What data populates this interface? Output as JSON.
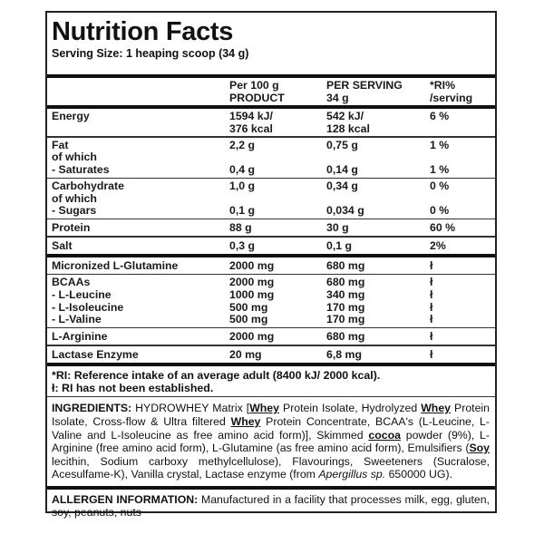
{
  "title": "Nutrition Facts",
  "serving_size": "Serving Size: 1 heaping scoop (34 g)",
  "table": {
    "groups": [
      {
        "type": "header",
        "lines": [
          [
            "",
            "Per 100 g",
            "PER SERVING",
            "*RI%"
          ],
          [
            "",
            "PRODUCT",
            "34 g",
            "/serving"
          ]
        ],
        "after": "thick"
      },
      {
        "lines": [
          [
            "Energy",
            "1594 kJ/",
            "542 kJ/",
            "6 %"
          ],
          [
            "",
            "376 kcal",
            "128 kcal",
            ""
          ]
        ],
        "after": "thin"
      },
      {
        "lines": [
          [
            "Fat",
            "2,2 g",
            "0,75 g",
            "1 %"
          ],
          [
            "of which",
            "",
            "",
            ""
          ],
          [
            "- Saturates",
            "0,4 g",
            "0,14 g",
            "1 %"
          ]
        ],
        "after": "thin"
      },
      {
        "lines": [
          [
            "Carbohydrate",
            "1,0 g",
            "0,34 g",
            "0 %"
          ],
          [
            "of which",
            "",
            "",
            ""
          ],
          [
            "- Sugars",
            "0,1 g",
            "0,034 g",
            "0 %"
          ]
        ],
        "after": "thin"
      },
      {
        "lines": [
          [
            "Protein",
            "88 g",
            "30 g",
            "60 %"
          ]
        ],
        "after": "thin"
      },
      {
        "lines": [
          [
            "Salt",
            "0,3 g",
            "0,1 g",
            "2%"
          ]
        ],
        "after": "thick"
      },
      {
        "lines": [
          [
            "Micronized L-Glutamine",
            "2000 mg",
            "680 mg",
            "ł"
          ]
        ],
        "after": "thin"
      },
      {
        "lines": [
          [
            "BCAAs",
            "2000 mg",
            "680 mg",
            "ł"
          ],
          [
            "- L-Leucine",
            "1000 mg",
            "340 mg",
            "ł"
          ],
          [
            "- L-Isoleucine",
            "500 mg",
            "170 mg",
            "ł"
          ],
          [
            "- L-Valine",
            "500 mg",
            "170 mg",
            "ł"
          ]
        ],
        "after": "thin"
      },
      {
        "lines": [
          [
            "L-Arginine",
            "2000 mg",
            "680 mg",
            "ł"
          ]
        ],
        "after": "thin"
      },
      {
        "lines": [
          [
            "Lactase Enzyme",
            "20 mg",
            "6,8 mg",
            "ł"
          ]
        ],
        "after": "thick"
      }
    ]
  },
  "notes": [
    "*RI: Reference intake of an average adult (8400 kJ/ 2000 kcal).",
    "ł: RI has not been established."
  ],
  "ingredients": {
    "label": "INGREDIENTS:",
    "segments": [
      {
        "t": " HYDROWHEY Matrix ["
      },
      {
        "t": "Whey",
        "s": "u"
      },
      {
        "t": " Protein Isolate, Hydrolyzed "
      },
      {
        "t": "Whey",
        "s": "u"
      },
      {
        "t": " Protein Isolate, Cross-flow & Ultra filtered "
      },
      {
        "t": "Whey",
        "s": "u"
      },
      {
        "t": " Protein Concentrate, BCAA's (L-Leucine, L-Valine and L-Isoleucine as free amino acid form)], Skimmed "
      },
      {
        "t": "cocoa",
        "s": "u"
      },
      {
        "t": " powder (9%), L-Arginine (free amino acid form), L-Glutamine (as free amino acid form), Emulsifiers ("
      },
      {
        "t": "Soy",
        "s": "u"
      },
      {
        "t": " lecithin, Sodium carboxy methylcellulose), Flavour­ings, Sweeteners (Sucralose, Acesulfame-K), Vanilla crystal, Lactase enzyme (from "
      },
      {
        "t": "Apergillus sp.",
        "s": "i"
      },
      {
        "t": " 650000 UG)."
      }
    ]
  },
  "allergen": {
    "label": "ALLERGEN INFORMATION:",
    "text": " Manufactured in a facility that process­es milk, egg, gluten, soy, peanuts, nuts"
  }
}
